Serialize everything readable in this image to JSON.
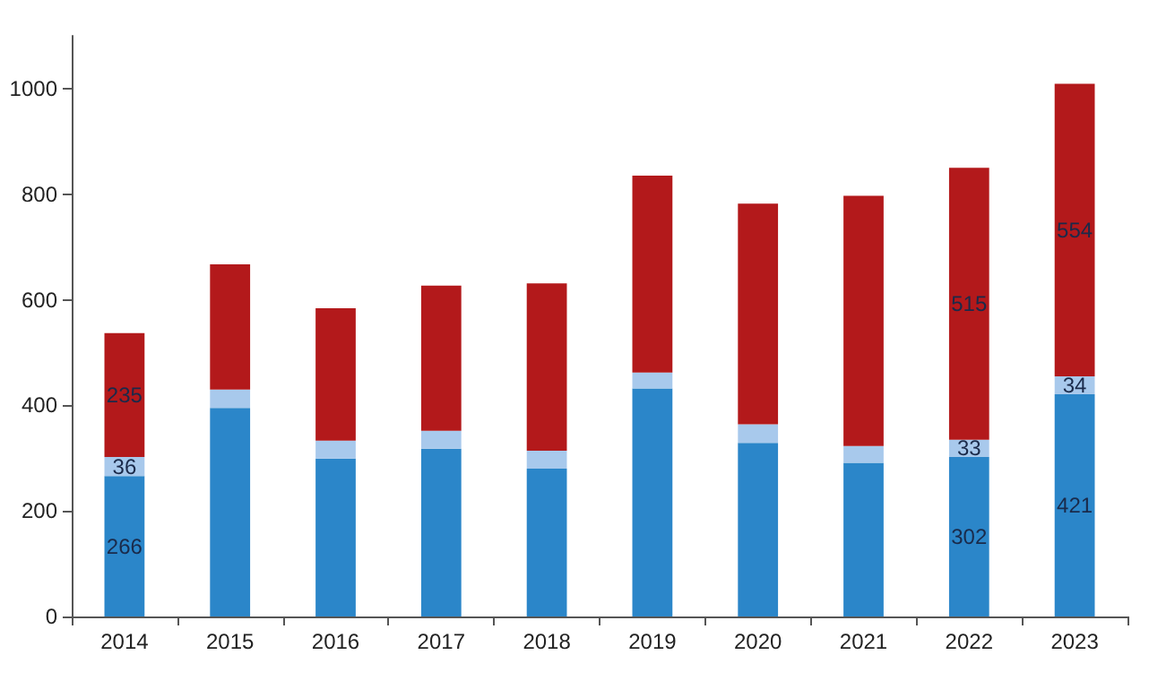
{
  "chart_data": {
    "type": "bar",
    "stacked": true,
    "categories": [
      "2014",
      "2015",
      "2016",
      "2017",
      "2018",
      "2019",
      "2020",
      "2021",
      "2022",
      "2023"
    ],
    "series": [
      {
        "color": "#2b86c9",
        "values": [
          266,
          395,
          299,
          318,
          280,
          432,
          329,
          291,
          302,
          421
        ],
        "value_labels": [
          "266",
          null,
          null,
          null,
          null,
          null,
          null,
          null,
          "302",
          "421"
        ]
      },
      {
        "color": "#a8c9ec",
        "values": [
          36,
          35,
          34,
          34,
          34,
          30,
          35,
          32,
          33,
          34
        ],
        "value_labels": [
          "36",
          null,
          null,
          null,
          null,
          null,
          null,
          null,
          "33",
          "34"
        ]
      },
      {
        "color": "#b3191b",
        "values": [
          235,
          237,
          251,
          275,
          317,
          373,
          418,
          474,
          515,
          554
        ],
        "value_labels": [
          "235",
          null,
          null,
          null,
          null,
          null,
          null,
          null,
          "515",
          "554"
        ]
      }
    ],
    "ylim": [
      0,
      1100
    ],
    "yticks": [
      0,
      200,
      400,
      600,
      800,
      1000
    ]
  }
}
